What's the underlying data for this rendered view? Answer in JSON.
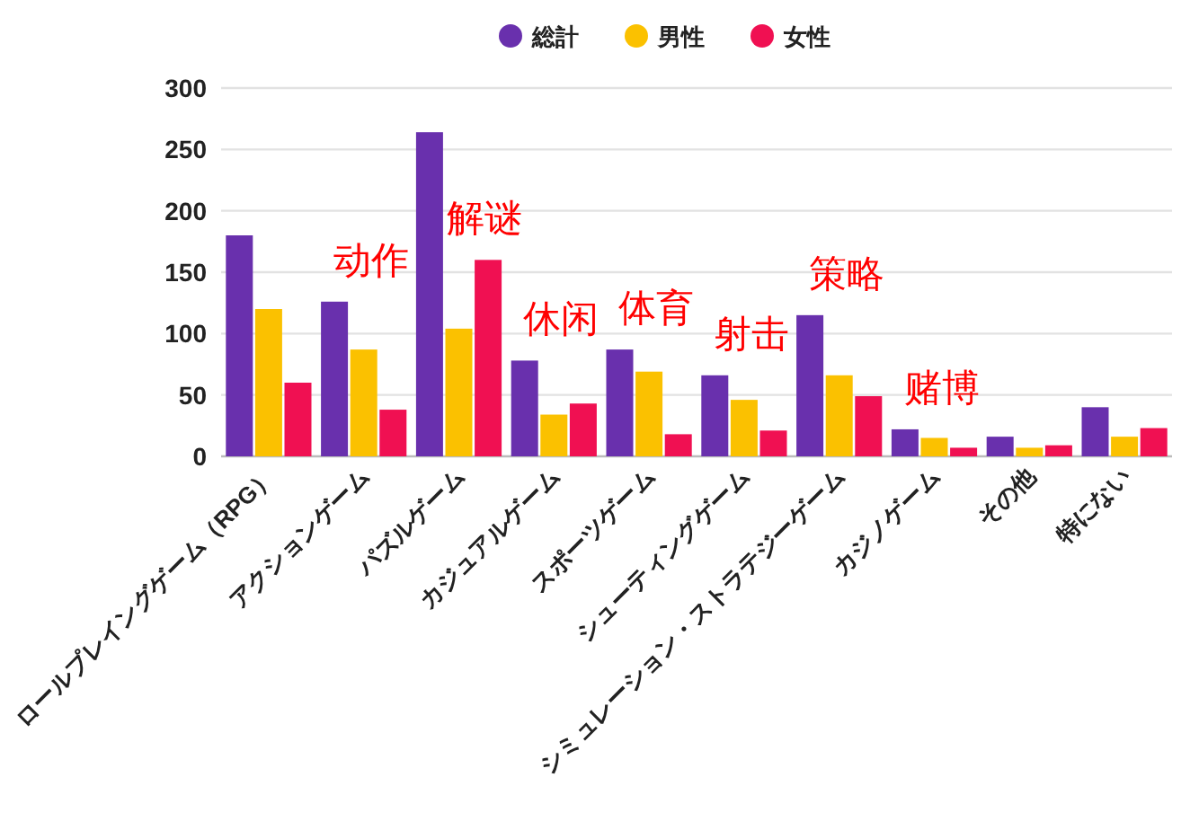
{
  "chart_data": {
    "type": "bar",
    "categories": [
      "ロールプレイングゲーム（RPG）",
      "アクションゲーム",
      "パズルゲーム",
      "カジュアルゲーム",
      "スポーツゲーム",
      "シューティングゲーム",
      "シミュレーション・ストラテジーゲーム",
      "カジノゲーム",
      "その他",
      "特にない"
    ],
    "series": [
      {
        "name": "総計",
        "color": "#6930ad",
        "values": [
          180,
          126,
          264,
          78,
          87,
          66,
          115,
          22,
          16,
          40
        ]
      },
      {
        "name": "男性",
        "color": "#fbc100",
        "values": [
          120,
          87,
          104,
          34,
          69,
          46,
          66,
          15,
          7,
          16
        ]
      },
      {
        "name": "女性",
        "color": "#f01052",
        "values": [
          60,
          38,
          160,
          43,
          18,
          21,
          49,
          7,
          9,
          23
        ]
      }
    ],
    "ylim": [
      0,
      300
    ],
    "yticks": [
      0,
      50,
      100,
      150,
      200,
      250,
      300
    ],
    "grid": "y",
    "legend": "top",
    "annotations": [
      "动作",
      "解谜",
      "休闲",
      "体育",
      "射击",
      "策略",
      "赌博"
    ]
  }
}
